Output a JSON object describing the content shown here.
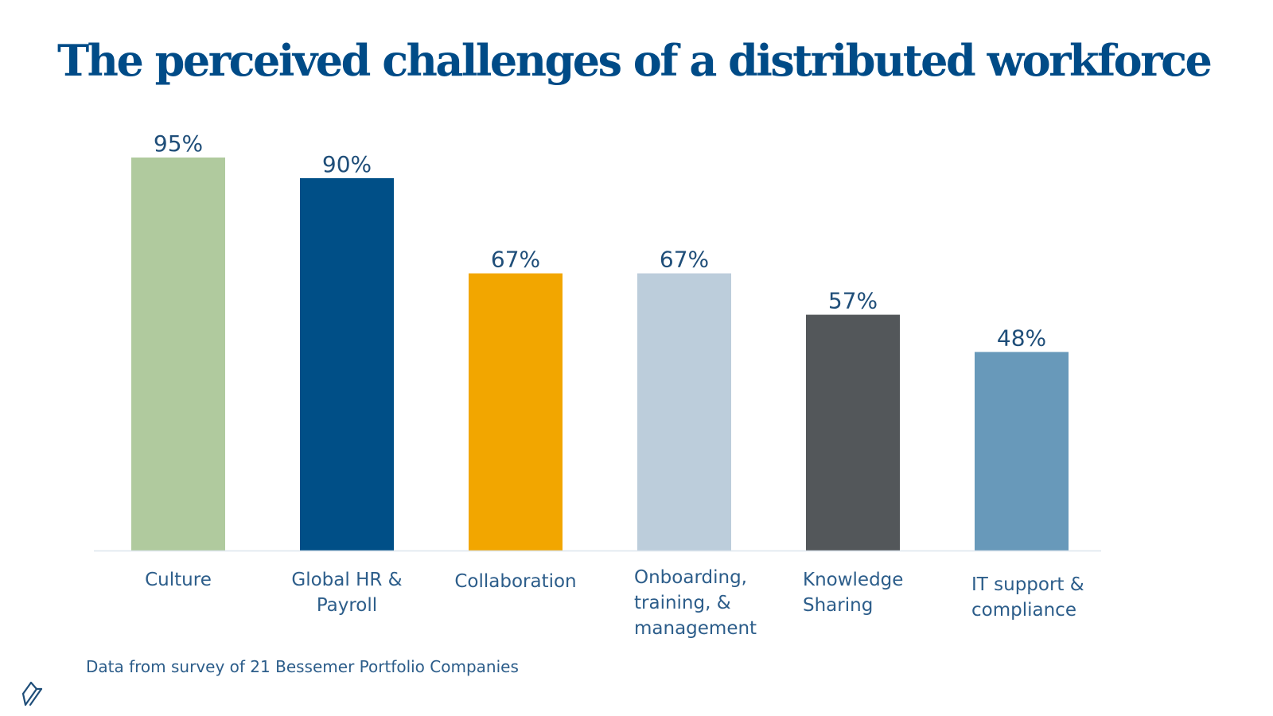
{
  "slide": {
    "title": "The perceived challenges of a distributed workforce",
    "footnote": "Data from survey of 21 Bessemer Portfolio Companies",
    "logo_icon": "bessemer-logo-icon"
  },
  "chart_data": {
    "type": "bar",
    "title": "",
    "xlabel": "",
    "ylabel": "",
    "ylim": [
      0,
      100
    ],
    "grid": false,
    "categories": [
      [
        "Culture"
      ],
      [
        "Global HR &",
        "Payroll"
      ],
      [
        "Collaboration"
      ],
      [
        "Onboarding,",
        "training, &",
        "management"
      ],
      [
        "Knowledge",
        "Sharing"
      ],
      [
        "IT support &",
        "compliance"
      ]
    ],
    "values": [
      95,
      90,
      67,
      67,
      57,
      48
    ],
    "value_labels": [
      "95%",
      "90%",
      "67%",
      "67%",
      "57%",
      "48%"
    ],
    "colors": [
      "#b0ca9e",
      "#004f87",
      "#f2a600",
      "#bccddb",
      "#53575a",
      "#6899ba"
    ],
    "axis_color": "#dde6ee"
  }
}
